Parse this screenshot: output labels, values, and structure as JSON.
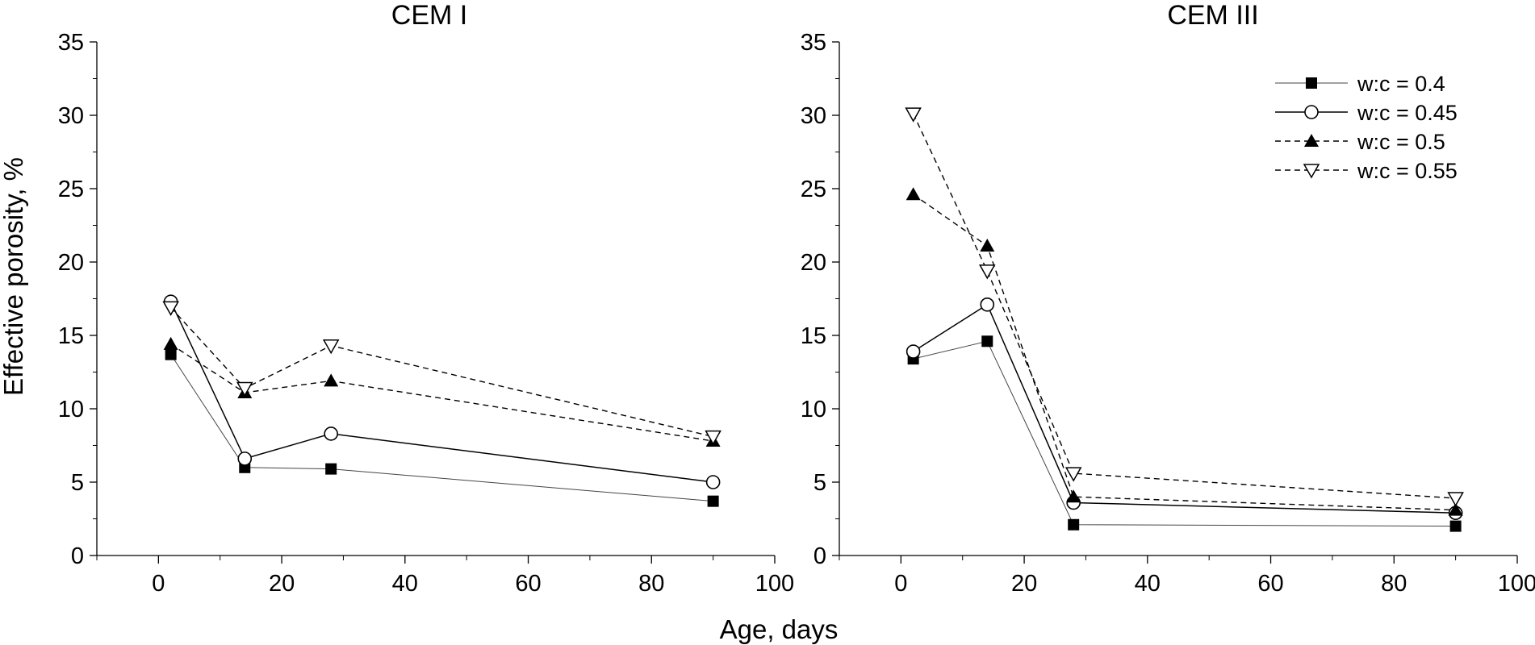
{
  "figure": {
    "xlabel": "Age, days",
    "ylabel": "Effective porosity, %"
  },
  "series_styles": [
    {
      "marker": "square-filled",
      "line": "solid-thin",
      "color": "#000000"
    },
    {
      "marker": "circle-open",
      "line": "solid",
      "color": "#000000"
    },
    {
      "marker": "triangle-up-filled",
      "line": "dashed",
      "color": "#000000"
    },
    {
      "marker": "triangle-down-open",
      "line": "dashed",
      "color": "#000000"
    }
  ],
  "chart_data": [
    {
      "type": "line",
      "title": "CEM I",
      "xlabel": "",
      "ylabel": "",
      "xlim": [
        -10,
        100
      ],
      "ylim": [
        0,
        35
      ],
      "xticks": [
        0,
        20,
        40,
        60,
        80,
        100
      ],
      "yticks": [
        0,
        5,
        10,
        15,
        20,
        25,
        30,
        35
      ],
      "grid": false,
      "series": [
        {
          "name": "w:c = 0.4",
          "x": [
            2,
            14,
            28,
            90
          ],
          "y": [
            13.7,
            6.0,
            5.9,
            3.7
          ]
        },
        {
          "name": "w:c = 0.45",
          "x": [
            2,
            14,
            28,
            90
          ],
          "y": [
            17.3,
            6.6,
            8.3,
            5.0
          ]
        },
        {
          "name": "w:c = 0.5",
          "x": [
            2,
            14,
            28,
            90
          ],
          "y": [
            14.4,
            11.1,
            11.9,
            7.8
          ]
        },
        {
          "name": "w:c = 0.55",
          "x": [
            2,
            14,
            28,
            90
          ],
          "y": [
            16.9,
            11.4,
            14.3,
            8.1
          ]
        }
      ]
    },
    {
      "type": "line",
      "title": "CEM III",
      "xlabel": "",
      "ylabel": "",
      "xlim": [
        -10,
        100
      ],
      "ylim": [
        0,
        35
      ],
      "xticks": [
        0,
        20,
        40,
        60,
        80,
        100
      ],
      "yticks": [
        0,
        5,
        10,
        15,
        20,
        25,
        30,
        35
      ],
      "grid": false,
      "legend": "top-right",
      "series": [
        {
          "name": "w:c = 0.4",
          "x": [
            2,
            14,
            28,
            90
          ],
          "y": [
            13.4,
            14.6,
            2.1,
            2.0
          ]
        },
        {
          "name": "w:c = 0.45",
          "x": [
            2,
            14,
            28,
            90
          ],
          "y": [
            13.9,
            17.1,
            3.6,
            2.9
          ]
        },
        {
          "name": "w:c = 0.5",
          "x": [
            2,
            14,
            28,
            90
          ],
          "y": [
            24.6,
            21.1,
            4.0,
            3.1
          ]
        },
        {
          "name": "w:c = 0.55",
          "x": [
            2,
            14,
            28,
            90
          ],
          "y": [
            30.1,
            19.4,
            5.6,
            3.9
          ]
        }
      ]
    }
  ]
}
